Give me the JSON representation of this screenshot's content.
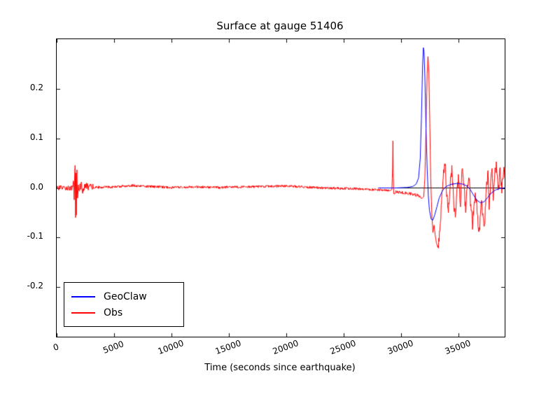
{
  "chart_data": {
    "type": "line",
    "title": "Surface at gauge 51406",
    "xlabel": "Time (seconds since earthquake)",
    "ylabel": "",
    "xlim": [
      0,
      39000
    ],
    "ylim": [
      -0.3,
      0.3
    ],
    "grid": false,
    "background": "#ffffff",
    "frame_color": "#000000",
    "xticks": [
      {
        "value": 0,
        "label": "0"
      },
      {
        "value": 5000,
        "label": "5000"
      },
      {
        "value": 10000,
        "label": "10000"
      },
      {
        "value": 15000,
        "label": "15000"
      },
      {
        "value": 20000,
        "label": "20000"
      },
      {
        "value": 25000,
        "label": "25000"
      },
      {
        "value": 30000,
        "label": "30000"
      },
      {
        "value": 35000,
        "label": "35000"
      }
    ],
    "yticks": [
      {
        "value": 0.2,
        "label": "0.2"
      },
      {
        "value": 0.1,
        "label": "0.1"
      },
      {
        "value": 0.0,
        "label": "0.0"
      },
      {
        "value": -0.1,
        "label": "-0.1"
      },
      {
        "value": -0.2,
        "label": "-0.2"
      }
    ],
    "legend": {
      "position": "lower left",
      "entries": [
        {
          "label": "GeoClaw",
          "color": "#0000ff"
        },
        {
          "label": "Obs",
          "color": "#ff0000"
        }
      ]
    },
    "series": [
      {
        "name": "zero-reference",
        "color": "#000000",
        "width": 1,
        "points": [
          [
            28000,
            0.0
          ],
          [
            39000,
            0.0
          ]
        ]
      },
      {
        "name": "Obs",
        "color": "#ff0000",
        "width": 1,
        "seed": 12345,
        "sample_step": 30,
        "anchors": [
          [
            0,
            0.0
          ],
          [
            1400,
            0.0
          ],
          [
            1480,
            0.012
          ],
          [
            1520,
            -0.018
          ],
          [
            1560,
            0.03
          ],
          [
            1600,
            0.045
          ],
          [
            1640,
            -0.065
          ],
          [
            1680,
            0.035
          ],
          [
            1720,
            -0.045
          ],
          [
            1760,
            0.028
          ],
          [
            1820,
            -0.03
          ],
          [
            1880,
            0.018
          ],
          [
            1960,
            -0.012
          ],
          [
            2050,
            0.01
          ],
          [
            2200,
            -0.006
          ],
          [
            2500,
            0.004
          ],
          [
            3000,
            0.001
          ],
          [
            5000,
            0.002
          ],
          [
            6500,
            0.005
          ],
          [
            8000,
            0.003
          ],
          [
            10000,
            0.001
          ],
          [
            12000,
            0.002
          ],
          [
            14000,
            0.001
          ],
          [
            16000,
            0.002
          ],
          [
            18000,
            0.003
          ],
          [
            20000,
            0.004
          ],
          [
            21500,
            0.002
          ],
          [
            23000,
            0.0
          ],
          [
            25000,
            -0.001
          ],
          [
            26500,
            -0.002
          ],
          [
            28000,
            -0.004
          ],
          [
            28900,
            -0.005
          ],
          [
            29180,
            -0.003
          ],
          [
            29240,
            0.04
          ],
          [
            29270,
            0.095
          ],
          [
            29300,
            0.03
          ],
          [
            29340,
            -0.012
          ],
          [
            29500,
            -0.008
          ],
          [
            30000,
            -0.009
          ],
          [
            30600,
            -0.011
          ],
          [
            31100,
            -0.013
          ],
          [
            31500,
            -0.016
          ],
          [
            31800,
            -0.021
          ],
          [
            31950,
            -0.018
          ],
          [
            32050,
            0.02
          ],
          [
            32150,
            0.12
          ],
          [
            32250,
            0.23
          ],
          [
            32320,
            0.265
          ],
          [
            32400,
            0.235
          ],
          [
            32480,
            0.13
          ],
          [
            32560,
            0.02
          ],
          [
            32650,
            -0.05
          ],
          [
            32750,
            -0.09
          ],
          [
            32850,
            -0.075
          ],
          [
            32950,
            -0.095
          ],
          [
            33050,
            -0.11
          ],
          [
            33200,
            -0.122
          ],
          [
            33350,
            -0.085
          ],
          [
            33500,
            -0.03
          ],
          [
            33650,
            0.02
          ],
          [
            33800,
            0.05
          ],
          [
            33950,
            -0.012
          ],
          [
            34100,
            -0.052
          ],
          [
            34250,
            0.008
          ],
          [
            34400,
            0.04
          ],
          [
            34550,
            -0.022
          ],
          [
            34700,
            -0.06
          ],
          [
            34850,
            0.0
          ],
          [
            35000,
            0.022
          ],
          [
            35150,
            -0.03
          ],
          [
            35300,
            0.045
          ],
          [
            35450,
            0.0
          ],
          [
            35600,
            -0.045
          ],
          [
            35750,
            0.01
          ],
          [
            35900,
            0.02
          ],
          [
            36050,
            -0.04
          ],
          [
            36200,
            -0.075
          ],
          [
            36350,
            -0.03
          ],
          [
            36500,
            -0.012
          ],
          [
            36650,
            -0.06
          ],
          [
            36800,
            -0.09
          ],
          [
            36950,
            -0.02
          ],
          [
            37100,
            -0.05
          ],
          [
            37250,
            -0.08
          ],
          [
            37400,
            0.0
          ],
          [
            37550,
            0.03
          ],
          [
            37650,
            -0.04
          ],
          [
            37800,
            0.012
          ],
          [
            37900,
            0.042
          ],
          [
            38000,
            -0.015
          ],
          [
            38150,
            0.03
          ],
          [
            38300,
            0.047
          ],
          [
            38450,
            -0.01
          ],
          [
            38600,
            0.04
          ],
          [
            38750,
            0.0
          ],
          [
            38900,
            0.042
          ],
          [
            39000,
            0.02
          ]
        ],
        "noise": [
          {
            "from": 0,
            "to": 1400,
            "amp": 0.005
          },
          {
            "from": 1400,
            "to": 2200,
            "amp": 0.012
          },
          {
            "from": 2200,
            "to": 3200,
            "amp": 0.007
          },
          {
            "from": 3200,
            "to": 29100,
            "amp": 0.0025
          },
          {
            "from": 29400,
            "to": 31800,
            "amp": 0.003
          },
          {
            "from": 33200,
            "to": 39000,
            "amp": 0.012
          }
        ]
      },
      {
        "name": "GeoClaw",
        "color": "#0000ff",
        "width": 1,
        "points": [
          [
            28000,
            0.0
          ],
          [
            29500,
            0.0
          ],
          [
            30500,
            0.001
          ],
          [
            31000,
            0.003
          ],
          [
            31300,
            0.008
          ],
          [
            31500,
            0.02
          ],
          [
            31650,
            0.06
          ],
          [
            31750,
            0.14
          ],
          [
            31850,
            0.245
          ],
          [
            31920,
            0.283
          ],
          [
            31980,
            0.275
          ],
          [
            32060,
            0.215
          ],
          [
            32150,
            0.12
          ],
          [
            32250,
            0.04
          ],
          [
            32350,
            -0.015
          ],
          [
            32450,
            -0.045
          ],
          [
            32600,
            -0.063
          ],
          [
            32750,
            -0.065
          ],
          [
            32900,
            -0.055
          ],
          [
            33100,
            -0.038
          ],
          [
            33300,
            -0.02
          ],
          [
            33600,
            -0.005
          ],
          [
            33900,
            0.003
          ],
          [
            34300,
            0.007
          ],
          [
            34800,
            0.009
          ],
          [
            35300,
            0.008
          ],
          [
            35700,
            0.004
          ],
          [
            36000,
            -0.003
          ],
          [
            36300,
            -0.015
          ],
          [
            36600,
            -0.025
          ],
          [
            36900,
            -0.03
          ],
          [
            37200,
            -0.028
          ],
          [
            37500,
            -0.02
          ],
          [
            37800,
            -0.011
          ],
          [
            38200,
            -0.004
          ],
          [
            38600,
            -0.001
          ],
          [
            39000,
            0.0
          ]
        ]
      }
    ]
  }
}
